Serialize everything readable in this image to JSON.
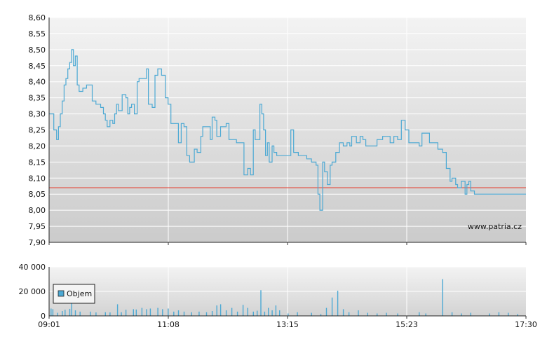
{
  "chart_data": [
    {
      "type": "line",
      "name_hidden": "",
      "x_tick_labels": [
        "09:01",
        "11:08",
        "13:15",
        "15:23",
        "17:30"
      ],
      "y_tick_labels": [
        "7,90",
        "7,95",
        "8,00",
        "8,05",
        "8,10",
        "8,15",
        "8,20",
        "8,25",
        "8,30",
        "8,35",
        "8,40",
        "8,45",
        "8,50",
        "8,55",
        "8,60"
      ],
      "ylim": [
        7.9,
        8.6
      ],
      "x_minutes_range": [
        0,
        509
      ],
      "reference_line": 8.07,
      "watermark": "www.patria.cz",
      "line_color": "#4ca9d4",
      "reference_color": "#e53b2c",
      "series": [
        {
          "points": [
            [
              0,
              8.3
            ],
            [
              3,
              8.3
            ],
            [
              5,
              8.25
            ],
            [
              8,
              8.22
            ],
            [
              10,
              8.26
            ],
            [
              12,
              8.3
            ],
            [
              14,
              8.34
            ],
            [
              16,
              8.39
            ],
            [
              18,
              8.41
            ],
            [
              20,
              8.44
            ],
            [
              22,
              8.46
            ],
            [
              24,
              8.5
            ],
            [
              26,
              8.45
            ],
            [
              28,
              8.48
            ],
            [
              30,
              8.39
            ],
            [
              32,
              8.37
            ],
            [
              34,
              8.37
            ],
            [
              36,
              8.38
            ],
            [
              40,
              8.39
            ],
            [
              44,
              8.39
            ],
            [
              46,
              8.34
            ],
            [
              50,
              8.33
            ],
            [
              55,
              8.32
            ],
            [
              58,
              8.3
            ],
            [
              60,
              8.28
            ],
            [
              62,
              8.26
            ],
            [
              65,
              8.28
            ],
            [
              68,
              8.27
            ],
            [
              70,
              8.3
            ],
            [
              72,
              8.33
            ],
            [
              74,
              8.31
            ],
            [
              78,
              8.36
            ],
            [
              82,
              8.35
            ],
            [
              84,
              8.3
            ],
            [
              86,
              8.32
            ],
            [
              88,
              8.33
            ],
            [
              91,
              8.3
            ],
            [
              94,
              8.4
            ],
            [
              96,
              8.41
            ],
            [
              100,
              8.41
            ],
            [
              104,
              8.44
            ],
            [
              106,
              8.33
            ],
            [
              110,
              8.32
            ],
            [
              113,
              8.42
            ],
            [
              116,
              8.44
            ],
            [
              120,
              8.42
            ],
            [
              124,
              8.35
            ],
            [
              127,
              8.33
            ],
            [
              130,
              8.27
            ],
            [
              134,
              8.27
            ],
            [
              138,
              8.21
            ],
            [
              141,
              8.27
            ],
            [
              144,
              8.26
            ],
            [
              147,
              8.17
            ],
            [
              150,
              8.15
            ],
            [
              152,
              8.15
            ],
            [
              155,
              8.19
            ],
            [
              158,
              8.18
            ],
            [
              162,
              8.23
            ],
            [
              164,
              8.26
            ],
            [
              170,
              8.26
            ],
            [
              172,
              8.22
            ],
            [
              174,
              8.29
            ],
            [
              177,
              8.28
            ],
            [
              179,
              8.23
            ],
            [
              181,
              8.23
            ],
            [
              183,
              8.26
            ],
            [
              189,
              8.27
            ],
            [
              192,
              8.22
            ],
            [
              196,
              8.22
            ],
            [
              200,
              8.21
            ],
            [
              204,
              8.21
            ],
            [
              208,
              8.11
            ],
            [
              212,
              8.13
            ],
            [
              215,
              8.11
            ],
            [
              218,
              8.25
            ],
            [
              220,
              8.22
            ],
            [
              222,
              8.22
            ],
            [
              225,
              8.33
            ],
            [
              227,
              8.3
            ],
            [
              229,
              8.25
            ],
            [
              231,
              8.17
            ],
            [
              233,
              8.21
            ],
            [
              235,
              8.15
            ],
            [
              238,
              8.2
            ],
            [
              240,
              8.18
            ],
            [
              243,
              8.17
            ],
            [
              255,
              8.17
            ],
            [
              258,
              8.25
            ],
            [
              261,
              8.18
            ],
            [
              266,
              8.17
            ],
            [
              272,
              8.17
            ],
            [
              275,
              8.16
            ],
            [
              280,
              8.15
            ],
            [
              285,
              8.14
            ],
            [
              287,
              8.05
            ],
            [
              289,
              8.0
            ],
            [
              292,
              8.15
            ],
            [
              294,
              8.12
            ],
            [
              297,
              8.08
            ],
            [
              300,
              8.14
            ],
            [
              302,
              8.15
            ],
            [
              306,
              8.18
            ],
            [
              310,
              8.21
            ],
            [
              314,
              8.2
            ],
            [
              318,
              8.21
            ],
            [
              321,
              8.2
            ],
            [
              323,
              8.23
            ],
            [
              328,
              8.21
            ],
            [
              332,
              8.23
            ],
            [
              335,
              8.22
            ],
            [
              338,
              8.2
            ],
            [
              344,
              8.2
            ],
            [
              350,
              8.22
            ],
            [
              356,
              8.23
            ],
            [
              360,
              8.23
            ],
            [
              364,
              8.21
            ],
            [
              368,
              8.23
            ],
            [
              372,
              8.22
            ],
            [
              376,
              8.28
            ],
            [
              380,
              8.25
            ],
            [
              384,
              8.21
            ],
            [
              390,
              8.21
            ],
            [
              395,
              8.2
            ],
            [
              398,
              8.24
            ],
            [
              402,
              8.24
            ],
            [
              406,
              8.21
            ],
            [
              410,
              8.21
            ],
            [
              415,
              8.19
            ],
            [
              420,
              8.18
            ],
            [
              424,
              8.13
            ],
            [
              428,
              8.09
            ],
            [
              430,
              8.1
            ],
            [
              434,
              8.08
            ],
            [
              436,
              8.07
            ],
            [
              440,
              8.09
            ],
            [
              444,
              8.05
            ],
            [
              446,
              8.08
            ],
            [
              448,
              8.09
            ],
            [
              450,
              8.06
            ],
            [
              454,
              8.05
            ],
            [
              460,
              8.05
            ]
          ]
        }
      ]
    },
    {
      "type": "bar",
      "y_tick_labels": [
        "0",
        "20 000",
        "40 000"
      ],
      "ylim": [
        0,
        40000
      ],
      "legend": "Objem",
      "bar_color": "#4ca9d4",
      "volumes": [
        [
          2,
          6000
        ],
        [
          4,
          5500
        ],
        [
          9,
          2500
        ],
        [
          14,
          4000
        ],
        [
          17,
          5000
        ],
        [
          22,
          5800
        ],
        [
          24,
          25000
        ],
        [
          28,
          4500
        ],
        [
          33,
          3500
        ],
        [
          44,
          3500
        ],
        [
          50,
          2800
        ],
        [
          60,
          3000
        ],
        [
          65,
          2800
        ],
        [
          73,
          9500
        ],
        [
          77,
          3000
        ],
        [
          82,
          5000
        ],
        [
          90,
          5500
        ],
        [
          93,
          5200
        ],
        [
          99,
          6500
        ],
        [
          104,
          5500
        ],
        [
          108,
          6000
        ],
        [
          116,
          6500
        ],
        [
          121,
          5500
        ],
        [
          127,
          6000
        ],
        [
          133,
          3500
        ],
        [
          138,
          4500
        ],
        [
          144,
          3500
        ],
        [
          152,
          3000
        ],
        [
          160,
          3500
        ],
        [
          168,
          3000
        ],
        [
          174,
          4000
        ],
        [
          179,
          8500
        ],
        [
          183,
          9500
        ],
        [
          189,
          4500
        ],
        [
          195,
          6500
        ],
        [
          201,
          3500
        ],
        [
          207,
          9000
        ],
        [
          212,
          6500
        ],
        [
          218,
          3500
        ],
        [
          222,
          4200
        ],
        [
          226,
          21000
        ],
        [
          230,
          3500
        ],
        [
          234,
          6500
        ],
        [
          238,
          4500
        ],
        [
          242,
          8500
        ],
        [
          246,
          4500
        ],
        [
          255,
          2000
        ],
        [
          265,
          3000
        ],
        [
          280,
          2500
        ],
        [
          290,
          1500
        ],
        [
          296,
          6500
        ],
        [
          302,
          15000
        ],
        [
          308,
          20500
        ],
        [
          314,
          5500
        ],
        [
          320,
          3000
        ],
        [
          330,
          4500
        ],
        [
          340,
          2500
        ],
        [
          350,
          2000
        ],
        [
          360,
          2500
        ],
        [
          372,
          2000
        ],
        [
          395,
          3000
        ],
        [
          402,
          2000
        ],
        [
          420,
          30000
        ],
        [
          430,
          3000
        ],
        [
          440,
          2000
        ],
        [
          450,
          2500
        ],
        [
          470,
          2000
        ],
        [
          480,
          3000
        ],
        [
          490,
          2500
        ],
        [
          500,
          1500
        ]
      ]
    }
  ]
}
